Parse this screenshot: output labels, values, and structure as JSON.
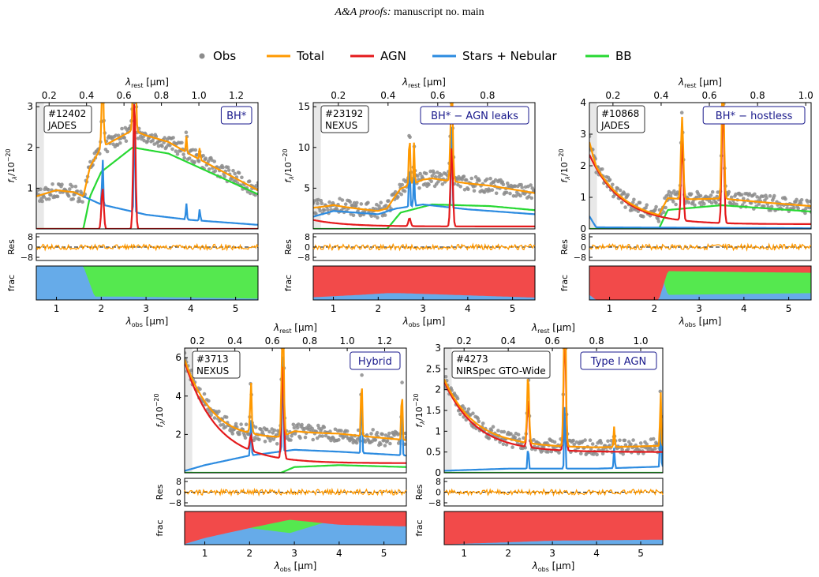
{
  "header": {
    "journal": "A&A proofs:",
    "manuscript": "manuscript no. main"
  },
  "legend": [
    {
      "label": "Obs",
      "color": "#8c8c8c",
      "kind": "dot"
    },
    {
      "label": "Total",
      "color": "#ff9900",
      "kind": "line"
    },
    {
      "label": "AGN",
      "color": "#e41a1c",
      "kind": "line"
    },
    {
      "label": "Stars + Nebular",
      "color": "#2c8be0",
      "kind": "line"
    },
    {
      "label": "BB",
      "color": "#27d832",
      "kind": "line"
    }
  ],
  "colors": {
    "obs": "#8c8c8c",
    "total": "#ff9900",
    "agn": "#e41a1c",
    "stars": "#2c8be0",
    "bb": "#27d832",
    "frac_red": "#f24a4a",
    "frac_blue": "#66abe9",
    "frac_green": "#55e84f",
    "badge_text": "#1a1a8c"
  },
  "chart_data": [
    {
      "type": "line",
      "id": "#12402",
      "survey": "JADES",
      "label": "BH*",
      "ylabel": "f_λ/10^-20",
      "ylim": [
        0,
        3.1
      ],
      "yticks": [
        1,
        2,
        3
      ],
      "xlabel": "λ_obs [μm]",
      "xlim": [
        0.55,
        5.5
      ],
      "xticks": [
        1,
        2,
        3,
        4,
        5
      ],
      "top_xlabel": "λ_rest [μm]",
      "redshift": 3.18,
      "top_ticks": [
        0.2,
        0.4,
        0.6,
        0.8,
        1.0,
        1.2
      ],
      "res_ticks": [
        8,
        0,
        -8
      ],
      "res_label": "Res",
      "frac_label": "frac",
      "agn_cont": [
        0.0,
        0.0
      ],
      "agn_lines": [
        [
          2.03,
          1.0
        ],
        [
          2.74,
          3.2
        ]
      ],
      "stars": [
        [
          0.55,
          0.8
        ],
        [
          1.0,
          0.95
        ],
        [
          1.4,
          0.9
        ],
        [
          2.0,
          0.6
        ],
        [
          3.0,
          0.35
        ],
        [
          4.0,
          0.22
        ],
        [
          5.5,
          0.1
        ]
      ],
      "stars_lines": [
        [
          2.03,
          1.2
        ],
        [
          2.74,
          3.0
        ],
        [
          3.9,
          0.4
        ],
        [
          4.2,
          0.3
        ]
      ],
      "bb": [
        [
          1.6,
          0.0
        ],
        [
          1.75,
          0.8
        ],
        [
          2.0,
          1.4
        ],
        [
          2.7,
          2.0
        ],
        [
          3.5,
          1.85
        ],
        [
          4.5,
          1.35
        ],
        [
          5.5,
          0.85
        ]
      ],
      "frac": [
        [
          0.55,
          0.0,
          1.0
        ],
        [
          1.6,
          0.0,
          1.0
        ],
        [
          1.85,
          0.0,
          0.1
        ],
        [
          2.5,
          0.0,
          0.1
        ],
        [
          5.5,
          0.0,
          0.04
        ]
      ]
    },
    {
      "type": "line",
      "id": "#23192",
      "survey": "NEXUS",
      "label": "BH* − AGN leaks",
      "ylabel": "f_λ/10^-20",
      "ylim": [
        0,
        15.5
      ],
      "yticks": [
        5,
        10,
        15
      ],
      "xlabel": "λ_obs [μm]",
      "xlim": [
        0.55,
        5.5
      ],
      "xticks": [
        1,
        2,
        3,
        4,
        5
      ],
      "top_xlabel": "λ_rest [μm]",
      "redshift": 4.55,
      "top_ticks": [
        0.2,
        0.4,
        0.6,
        0.8
      ],
      "res_ticks": [
        8,
        0,
        -8
      ],
      "res_label": "Res",
      "frac_label": "frac",
      "agn_cont": [
        0.8,
        0.3
      ],
      "agn_lines": [
        [
          2.7,
          1.0
        ],
        [
          3.64,
          10.0
        ]
      ],
      "stars": [
        [
          0.55,
          1.5
        ],
        [
          1.0,
          2.2
        ],
        [
          2.0,
          1.8
        ],
        [
          2.4,
          2.5
        ],
        [
          3.0,
          3.0
        ],
        [
          4.0,
          2.4
        ],
        [
          5.5,
          1.8
        ]
      ],
      "stars_lines": [
        [
          2.7,
          6.0
        ],
        [
          2.8,
          5.0
        ],
        [
          3.64,
          12.0
        ]
      ],
      "bb": [
        [
          2.2,
          0.0
        ],
        [
          2.5,
          2.0
        ],
        [
          3.2,
          3.0
        ],
        [
          4.5,
          2.8
        ],
        [
          5.5,
          2.3
        ]
      ],
      "frac": [
        [
          0.55,
          0.92,
          0.08
        ],
        [
          1.6,
          0.85,
          0.1
        ],
        [
          2.2,
          0.8,
          0.1
        ],
        [
          2.5,
          0.8,
          0.06
        ],
        [
          5.5,
          0.93,
          0.04
        ]
      ]
    },
    {
      "type": "line",
      "id": "#10868",
      "survey": "JADES",
      "label": "BH* − hostless",
      "ylabel": "f_λ/10^-20",
      "ylim": [
        0,
        4.0
      ],
      "yticks": [
        0,
        1,
        2,
        3,
        4
      ],
      "xlabel": "λ_obs [μm]",
      "xlim": [
        0.55,
        5.5
      ],
      "xticks": [
        1,
        2,
        3,
        4,
        5
      ],
      "top_xlabel": "λ_rest [μm]",
      "redshift": 4.38,
      "top_ticks": [
        0.2,
        0.4,
        0.6,
        0.8,
        1.0
      ],
      "res_ticks": [
        8,
        0,
        -8
      ],
      "res_label": "Res",
      "frac_label": "frac",
      "agn_cont": [
        2.2,
        0.15
      ],
      "agn_lines": [
        [
          2.62,
          2.6
        ],
        [
          3.53,
          4.0
        ]
      ],
      "stars": [
        [
          0.55,
          0.4
        ],
        [
          0.7,
          0.05
        ],
        [
          5.5,
          0.02
        ]
      ],
      "stars_lines": [],
      "bb": [
        [
          2.1,
          0.0
        ],
        [
          2.3,
          0.6
        ],
        [
          3.5,
          0.75
        ],
        [
          5.5,
          0.55
        ]
      ],
      "frac": [
        [
          0.55,
          0.85,
          0.0
        ],
        [
          0.7,
          1.0,
          0.0
        ],
        [
          2.1,
          1.0,
          0.0
        ],
        [
          2.3,
          0.15,
          0.0
        ],
        [
          5.5,
          0.2,
          0.0
        ]
      ]
    },
    {
      "type": "line",
      "id": "#3713",
      "survey": "NEXUS",
      "label": "Hybrid",
      "ylabel": "f_λ/10^-20",
      "ylim": [
        0,
        6.5
      ],
      "yticks": [
        2,
        4,
        6
      ],
      "xlabel": "λ_obs [μm]",
      "xlim": [
        0.55,
        5.5
      ],
      "xticks": [
        1,
        2,
        3,
        4,
        5
      ],
      "top_xlabel": "λ_rest [μm]",
      "redshift": 3.18,
      "top_ticks": [
        0.2,
        0.4,
        0.6,
        0.8,
        1.0,
        1.2
      ],
      "res_ticks": [
        8,
        0,
        -8
      ],
      "res_label": "Res",
      "frac_label": "frac",
      "agn_cont": [
        5.3,
        0.5
      ],
      "agn_lines": [
        [
          2.03,
          0.8
        ],
        [
          2.74,
          5.0
        ]
      ],
      "stars": [
        [
          0.55,
          0.1
        ],
        [
          1.0,
          0.4
        ],
        [
          2.0,
          0.9
        ],
        [
          3.0,
          1.2
        ],
        [
          4.0,
          1.1
        ],
        [
          5.5,
          0.9
        ]
      ],
      "stars_lines": [
        [
          2.03,
          2.0
        ],
        [
          2.74,
          6.0
        ],
        [
          4.5,
          3.5
        ],
        [
          5.4,
          3.0
        ]
      ],
      "bb": [
        [
          2.7,
          0.0
        ],
        [
          3.0,
          0.3
        ],
        [
          4.0,
          0.4
        ],
        [
          5.5,
          0.3
        ]
      ],
      "frac": [
        [
          0.55,
          0.98,
          0.0
        ],
        [
          1.0,
          0.8,
          0.0
        ],
        [
          2.0,
          0.5,
          0.0
        ],
        [
          2.9,
          0.25,
          0.1
        ],
        [
          4.0,
          0.4,
          0.4
        ],
        [
          5.5,
          0.45,
          0.5
        ]
      ]
    },
    {
      "type": "line",
      "id": "#4273",
      "survey": "NIRSpec GTO-Wide",
      "label": "Type I AGN",
      "ylabel": "f_λ/10^-20",
      "ylim": [
        0,
        3.0
      ],
      "yticks": [
        0.0,
        0.5,
        1.0,
        1.5,
        2.0,
        2.5,
        3.0
      ],
      "xlabel": "λ_obs [μm]",
      "xlim": [
        0.55,
        5.5
      ],
      "xticks": [
        1,
        2,
        3,
        4,
        5
      ],
      "top_xlabel": "λ_rest [μm]",
      "redshift": 4.0,
      "top_ticks": [
        0.2,
        0.4,
        0.6,
        0.8,
        1.0
      ],
      "res_ticks": [
        8,
        0,
        -8
      ],
      "res_label": "Res",
      "frac_label": "frac",
      "agn_cont": [
        1.7,
        0.5
      ],
      "agn_lines": [
        [
          2.45,
          1.2
        ],
        [
          3.28,
          3.0
        ]
      ],
      "stars": [
        [
          0.55,
          0.05
        ],
        [
          2.0,
          0.1
        ],
        [
          3.0,
          0.1
        ],
        [
          4.0,
          0.1
        ],
        [
          5.5,
          0.15
        ]
      ],
      "stars_lines": [
        [
          2.45,
          0.6
        ],
        [
          3.28,
          1.8
        ],
        [
          4.4,
          0.5
        ],
        [
          5.45,
          1.4
        ]
      ],
      "bb": [
        [
          0.55,
          0.0
        ],
        [
          5.5,
          0.0
        ]
      ],
      "frac": [
        [
          0.55,
          1.0,
          0.0
        ],
        [
          1.0,
          0.97,
          0.0
        ],
        [
          2.0,
          0.93,
          0.0
        ],
        [
          3.0,
          0.88,
          0.0
        ],
        [
          5.5,
          0.85,
          0.0
        ]
      ]
    }
  ]
}
